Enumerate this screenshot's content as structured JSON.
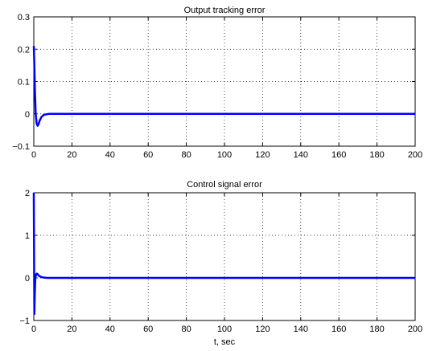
{
  "chart_data": [
    {
      "type": "line",
      "title": "Output tracking error",
      "xlabel": "",
      "ylabel": "",
      "xlim": [
        0,
        200
      ],
      "ylim": [
        -0.1,
        0.3
      ],
      "xticks": [
        0,
        20,
        40,
        60,
        80,
        100,
        120,
        140,
        160,
        180,
        200
      ],
      "yticks": [
        -0.1,
        0,
        0.1,
        0.2,
        0.3
      ],
      "ytick_labels": [
        "−0.1",
        "0",
        "0.1",
        "0.2",
        "0.3"
      ],
      "grid": true,
      "color": "#0000ff",
      "series": [
        {
          "x": [
            0,
            0.3,
            0.6,
            1,
            1.5,
            2,
            2.5,
            3,
            4,
            5,
            6,
            8,
            10,
            15,
            20,
            50,
            100,
            150,
            200
          ],
          "y": [
            0.21,
            0.15,
            0.07,
            0.0,
            -0.03,
            -0.037,
            -0.032,
            -0.022,
            -0.01,
            -0.004,
            -0.002,
            0,
            0,
            0,
            0,
            0,
            0,
            0,
            0
          ]
        }
      ]
    },
    {
      "type": "line",
      "title": "Control signal error",
      "xlabel": "t, sec",
      "ylabel": "",
      "xlim": [
        0,
        200
      ],
      "ylim": [
        -1,
        2
      ],
      "xticks": [
        0,
        20,
        40,
        60,
        80,
        100,
        120,
        140,
        160,
        180,
        200
      ],
      "yticks": [
        -1,
        0,
        1,
        2
      ],
      "ytick_labels": [
        "−1",
        "0",
        "1",
        "2"
      ],
      "grid": true,
      "color": "#0000ff",
      "series": [
        {
          "x": [
            0,
            0.15,
            0.3,
            0.5,
            0.8,
            1.2,
            1.6,
            2,
            2.5,
            3,
            4,
            5,
            7,
            10,
            20,
            50,
            100,
            150,
            200
          ],
          "y": [
            2.0,
            0.5,
            -0.85,
            -0.4,
            0.0,
            0.08,
            0.1,
            0.09,
            0.06,
            0.04,
            0.02,
            0.01,
            0,
            0,
            0,
            0,
            0,
            0,
            0
          ]
        }
      ]
    }
  ]
}
